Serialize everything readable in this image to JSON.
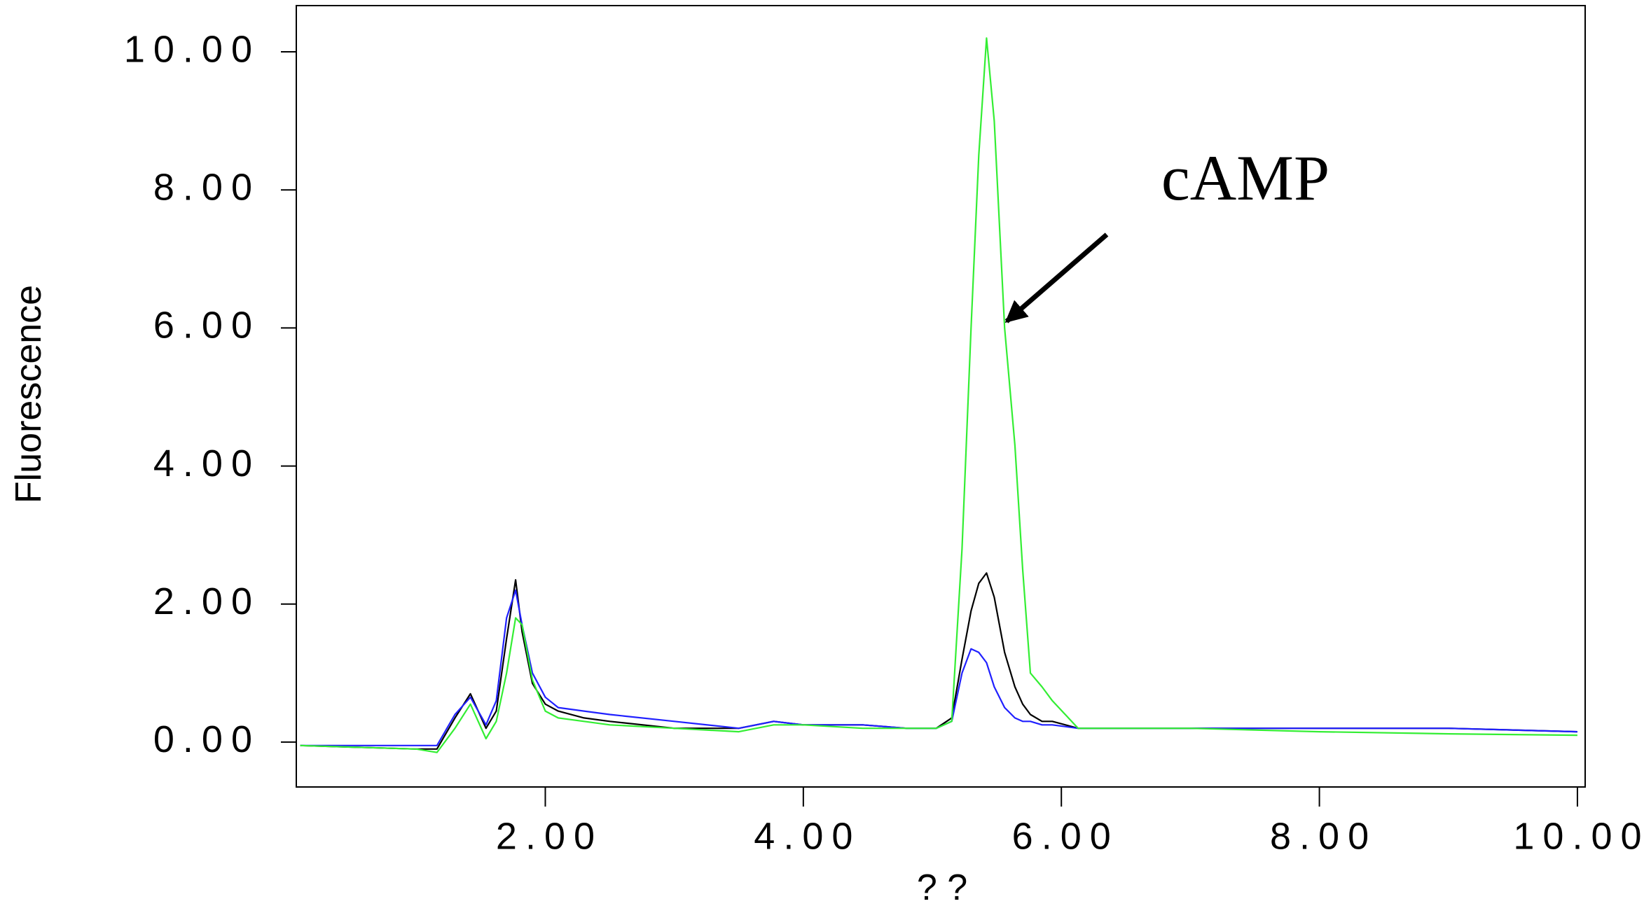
{
  "chart_data": {
    "type": "line",
    "xlabel": "? ?",
    "ylabel": "Fluorescence",
    "annotation": "cAMP",
    "x": [
      0.1,
      1.0,
      1.16,
      1.3,
      1.42,
      1.54,
      1.62,
      1.7,
      1.77,
      1.82,
      1.9,
      2.0,
      2.1,
      2.3,
      2.5,
      3.0,
      3.5,
      3.77,
      4.0,
      4.46,
      4.8,
      5.03,
      5.15,
      5.23,
      5.3,
      5.36,
      5.42,
      5.48,
      5.56,
      5.64,
      5.7,
      5.76,
      5.85,
      5.93,
      6.13,
      7.0,
      8.0,
      9.0,
      10.0
    ],
    "series": [
      {
        "color": "#000000",
        "values": [
          -0.05,
          -0.1,
          -0.1,
          0.35,
          0.7,
          0.2,
          0.45,
          1.5,
          2.35,
          1.6,
          0.85,
          0.55,
          0.45,
          0.35,
          0.3,
          0.2,
          0.2,
          0.3,
          0.25,
          0.25,
          0.2,
          0.2,
          0.35,
          1.2,
          1.9,
          2.3,
          2.45,
          2.1,
          1.3,
          0.8,
          0.55,
          0.4,
          0.3,
          0.3,
          0.2,
          0.2,
          0.2,
          0.2,
          0.15
        ]
      },
      {
        "color": "#2020ff",
        "values": [
          -0.05,
          -0.05,
          -0.05,
          0.4,
          0.65,
          0.25,
          0.6,
          1.8,
          2.2,
          1.7,
          1.0,
          0.65,
          0.5,
          0.45,
          0.4,
          0.3,
          0.2,
          0.3,
          0.25,
          0.25,
          0.2,
          0.2,
          0.3,
          1.0,
          1.35,
          1.3,
          1.15,
          0.8,
          0.5,
          0.35,
          0.3,
          0.3,
          0.25,
          0.25,
          0.2,
          0.2,
          0.2,
          0.2,
          0.15
        ]
      },
      {
        "color": "#33ee33",
        "values": [
          -0.05,
          -0.1,
          -0.15,
          0.2,
          0.55,
          0.05,
          0.3,
          1.0,
          1.8,
          1.7,
          0.9,
          0.45,
          0.35,
          0.3,
          0.25,
          0.2,
          0.15,
          0.25,
          0.25,
          0.2,
          0.2,
          0.2,
          0.3,
          2.8,
          6.0,
          8.5,
          10.2,
          9.0,
          6.0,
          4.3,
          2.5,
          1.0,
          0.8,
          0.6,
          0.2,
          0.2,
          0.15,
          0.12,
          0.1
        ]
      }
    ],
    "xlim": [
      0.07,
      10.06
    ],
    "ylim": [
      -0.65,
      10.67
    ],
    "xticks": [
      {
        "value": 2,
        "label": "2.00"
      },
      {
        "value": 4,
        "label": "4.00"
      },
      {
        "value": 6,
        "label": "6.00"
      },
      {
        "value": 8,
        "label": "8.00"
      },
      {
        "value": 10,
        "label": "10.00"
      }
    ],
    "yticks": [
      {
        "value": 0,
        "label": "0.00"
      },
      {
        "value": 2,
        "label": "2.00"
      },
      {
        "value": 4,
        "label": "4.00"
      },
      {
        "value": 6,
        "label": "6.00"
      },
      {
        "value": 8,
        "label": "8.00"
      },
      {
        "value": 10,
        "label": "10.00"
      }
    ]
  }
}
